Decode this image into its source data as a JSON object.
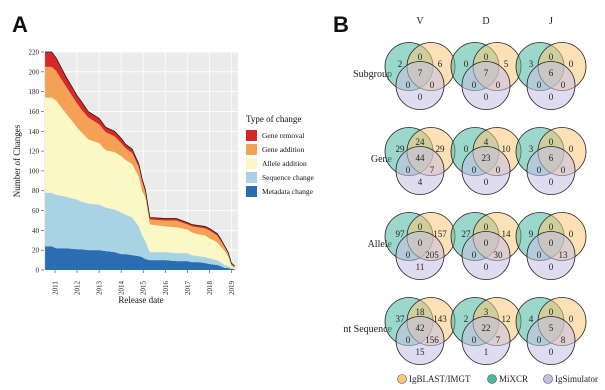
{
  "panels": {
    "a": "A",
    "b": "B"
  },
  "chart_data": [
    {
      "type": "area",
      "stacked": true,
      "xlabel": "Release date",
      "ylabel": "Number of Changes",
      "ylim": [
        0,
        220
      ],
      "yticks": [
        0,
        20,
        40,
        60,
        80,
        100,
        120,
        140,
        160,
        180,
        200,
        220
      ],
      "xticks": [
        "2011",
        "2012",
        "2013",
        "2014",
        "2015",
        "2016",
        "2017",
        "2018",
        "2019"
      ],
      "x": [
        2010.55,
        2010.85,
        2011.05,
        2011.5,
        2012.0,
        2012.2,
        2012.5,
        2013.0,
        2013.3,
        2013.7,
        2014.0,
        2014.2,
        2014.5,
        2014.8,
        2014.95,
        2015.1,
        2015.3,
        2016.0,
        2016.5,
        2017.0,
        2017.2,
        2017.5,
        2017.8,
        2018.0,
        2018.35,
        2018.5,
        2018.7,
        2018.85,
        2019.0,
        2019.15
      ],
      "grid": true,
      "legend": {
        "title": "Type of change",
        "position": "right"
      },
      "series": [
        {
          "name": "Metadata change",
          "color": "#2a6db3",
          "values": [
            24,
            24,
            22,
            22,
            21,
            21,
            20,
            20,
            19,
            18,
            16,
            16,
            15,
            14,
            13,
            11,
            10,
            10,
            9,
            9,
            8,
            8,
            7,
            6,
            5,
            4,
            2,
            2,
            1,
            1
          ]
        },
        {
          "name": "Sequence change",
          "color": "#a9d3e4",
          "values": [
            54,
            54,
            54,
            52,
            50,
            48,
            47,
            46,
            44,
            43,
            42,
            40,
            38,
            30,
            22,
            18,
            8,
            8,
            8,
            8,
            7,
            6,
            6,
            6,
            5,
            4,
            3,
            2,
            1,
            0
          ]
        },
        {
          "name": "Allele addition",
          "color": "#fbf8c6",
          "values": [
            96,
            96,
            95,
            84,
            73,
            70,
            65,
            62,
            58,
            58,
            57,
            55,
            54,
            50,
            45,
            44,
            28,
            26,
            26,
            24,
            23,
            22,
            22,
            20,
            18,
            16,
            14,
            10,
            2,
            1
          ]
        },
        {
          "name": "Gene addition",
          "color": "#f5a155",
          "values": [
            31,
            31,
            30,
            27,
            24,
            23,
            22,
            19,
            18,
            16,
            13,
            12,
            11,
            10,
            9,
            6,
            5,
            6,
            7,
            5,
            6,
            7,
            7,
            8,
            7,
            6,
            4,
            3,
            2,
            1
          ]
        },
        {
          "name": "Gene removal",
          "color": "#d62828",
          "values": [
            15,
            15,
            13,
            10,
            8,
            8,
            6,
            6,
            5,
            5,
            5,
            4,
            4,
            3,
            3,
            2,
            2,
            2,
            2,
            2,
            2,
            2,
            2,
            2,
            2,
            2,
            1,
            1,
            1,
            1
          ]
        }
      ]
    },
    {
      "type": "venn-grid",
      "columns": [
        "V",
        "D",
        "J"
      ],
      "rows": [
        "Subgroup",
        "Gene",
        "Allele",
        "nt Sequence"
      ],
      "sets": [
        {
          "name": "IgBLAST/IMGT",
          "color": "#f7c978"
        },
        {
          "name": "MiXCR",
          "color": "#4bb7a0"
        },
        {
          "name": "IgSimulator",
          "color": "#c7bfe3"
        }
      ],
      "region_order": [
        "mixcr_only",
        "mixcr_igblast",
        "igblast_only",
        "all_three",
        "mixcr_igsim",
        "igblast_igsim",
        "igsim_only"
      ],
      "cells": [
        [
          [
            2,
            0,
            6,
            7,
            0,
            0,
            0
          ],
          [
            0,
            0,
            5,
            7,
            0,
            0,
            0
          ],
          [
            3,
            0,
            0,
            6,
            0,
            0,
            0
          ]
        ],
        [
          [
            29,
            24,
            29,
            44,
            0,
            7,
            4
          ],
          [
            0,
            4,
            10,
            23,
            0,
            0,
            0
          ],
          [
            3,
            0,
            0,
            6,
            0,
            0,
            0
          ]
        ],
        [
          [
            97,
            0,
            157,
            0,
            0,
            205,
            11
          ],
          [
            27,
            0,
            14,
            0,
            0,
            30,
            0
          ],
          [
            9,
            0,
            0,
            0,
            0,
            13,
            0
          ]
        ],
        [
          [
            37,
            18,
            143,
            42,
            0,
            156,
            15
          ],
          [
            2,
            3,
            12,
            22,
            0,
            7,
            1
          ],
          [
            4,
            0,
            0,
            5,
            0,
            8,
            0
          ]
        ]
      ]
    }
  ]
}
